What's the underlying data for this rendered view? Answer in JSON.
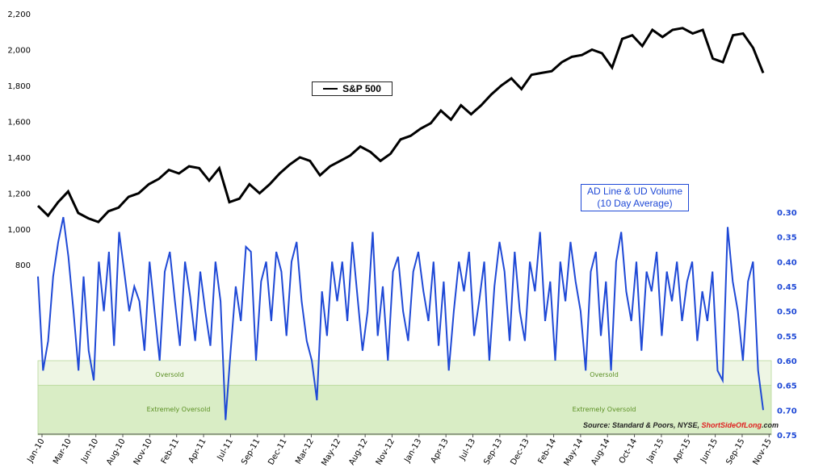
{
  "chart_data": {
    "type": "line",
    "x_labels": [
      "Jan-10",
      "Mar-10",
      "Jun-10",
      "Aug-10",
      "Nov-10",
      "Feb-11",
      "Apr-11",
      "Jul-11",
      "Sep-11",
      "Dec-11",
      "Mar-12",
      "May-12",
      "Aug-12",
      "Nov-12",
      "Jan-13",
      "Apr-13",
      "Jul-13",
      "Sep-13",
      "Dec-13",
      "Feb-14",
      "May-14",
      "Aug-14",
      "Oct-14",
      "Jan-15",
      "Apr-15",
      "Jun-15",
      "Sep-15",
      "Nov-15"
    ],
    "y_left": {
      "ticks": [
        "800",
        "1,000",
        "1,200",
        "1,400",
        "1,600",
        "1,800",
        "2,000",
        "2,200"
      ],
      "range": [
        1000,
        2200
      ]
    },
    "y_right": {
      "ticks": [
        "0.30",
        "0.35",
        "0.40",
        "0.45",
        "0.50",
        "0.55",
        "0.60",
        "0.65",
        "0.70",
        "0.75"
      ],
      "range": [
        0.3,
        0.75
      ],
      "inverted": true
    },
    "series": [
      {
        "name": "S&P 500",
        "color": "#000000",
        "axis": "left",
        "points": [
          [
            "Jan-10",
            1130
          ],
          [
            "Feb-10",
            1075
          ],
          [
            "Mar-10",
            1150
          ],
          [
            "Apr-10",
            1210
          ],
          [
            "May-10",
            1090
          ],
          [
            "Jun-10",
            1060
          ],
          [
            "Jul-10",
            1040
          ],
          [
            "Aug-10",
            1100
          ],
          [
            "Sep-10",
            1120
          ],
          [
            "Oct-10",
            1180
          ],
          [
            "Nov-10",
            1200
          ],
          [
            "Dec-10",
            1250
          ],
          [
            "Jan-11",
            1280
          ],
          [
            "Feb-11",
            1330
          ],
          [
            "Mar-11",
            1310
          ],
          [
            "Apr-11",
            1350
          ],
          [
            "May-11",
            1340
          ],
          [
            "Jun-11",
            1270
          ],
          [
            "Jul-11",
            1340
          ],
          [
            "Aug-11",
            1150
          ],
          [
            "Sep-11",
            1170
          ],
          [
            "Oct-11",
            1250
          ],
          [
            "Nov-11",
            1200
          ],
          [
            "Dec-11",
            1250
          ],
          [
            "Jan-12",
            1310
          ],
          [
            "Feb-12",
            1360
          ],
          [
            "Mar-12",
            1400
          ],
          [
            "Apr-12",
            1380
          ],
          [
            "May-12",
            1300
          ],
          [
            "Jun-12",
            1350
          ],
          [
            "Jul-12",
            1380
          ],
          [
            "Aug-12",
            1410
          ],
          [
            "Sep-12",
            1460
          ],
          [
            "Oct-12",
            1430
          ],
          [
            "Nov-12",
            1380
          ],
          [
            "Dec-12",
            1420
          ],
          [
            "Jan-13",
            1500
          ],
          [
            "Feb-13",
            1520
          ],
          [
            "Mar-13",
            1560
          ],
          [
            "Apr-13",
            1590
          ],
          [
            "May-13",
            1660
          ],
          [
            "Jun-13",
            1610
          ],
          [
            "Jul-13",
            1690
          ],
          [
            "Aug-13",
            1640
          ],
          [
            "Sep-13",
            1690
          ],
          [
            "Oct-13",
            1750
          ],
          [
            "Nov-13",
            1800
          ],
          [
            "Dec-13",
            1840
          ],
          [
            "Jan-14",
            1780
          ],
          [
            "Feb-14",
            1860
          ],
          [
            "Mar-14",
            1870
          ],
          [
            "Apr-14",
            1880
          ],
          [
            "May-14",
            1930
          ],
          [
            "Jun-14",
            1960
          ],
          [
            "Jul-14",
            1970
          ],
          [
            "Aug-14",
            2000
          ],
          [
            "Sep-14",
            1980
          ],
          [
            "Oct-14",
            1900
          ],
          [
            "Nov-14",
            2060
          ],
          [
            "Dec-14",
            2080
          ],
          [
            "Jan-15",
            2020
          ],
          [
            "Feb-15",
            2110
          ],
          [
            "Mar-15",
            2070
          ],
          [
            "Apr-15",
            2110
          ],
          [
            "May-15",
            2120
          ],
          [
            "Jun-15",
            2090
          ],
          [
            "Jul-15",
            2110
          ],
          [
            "Aug-15",
            1950
          ],
          [
            "Sep-15",
            1930
          ],
          [
            "Oct-15",
            2080
          ],
          [
            "Nov-15",
            2090
          ],
          [
            "Dec-15",
            2010
          ],
          [
            "Dec-15b",
            1870
          ]
        ]
      },
      {
        "name": "AD Line & UD Volume (10 Day Average)",
        "color": "#1f49d6",
        "axis": "right",
        "points": [
          [
            "Jan-10",
            0.43
          ],
          [
            "Jan-10b",
            0.62
          ],
          [
            "Feb-10",
            0.56
          ],
          [
            "Feb-10b",
            0.43
          ],
          [
            "Mar-10",
            0.36
          ],
          [
            "Mar-10b",
            0.31
          ],
          [
            "Apr-10",
            0.39
          ],
          [
            "Apr-10b",
            0.5
          ],
          [
            "May-10",
            0.62
          ],
          [
            "May-10b",
            0.43
          ],
          [
            "Jun-10",
            0.58
          ],
          [
            "Jun-10b",
            0.64
          ],
          [
            "Jul-10",
            0.4
          ],
          [
            "Jul-10b",
            0.5
          ],
          [
            "Aug-10",
            0.38
          ],
          [
            "Aug-10b",
            0.57
          ],
          [
            "Sep-10",
            0.34
          ],
          [
            "Sep-10b",
            0.42
          ],
          [
            "Oct-10",
            0.5
          ],
          [
            "Oct-10b",
            0.45
          ],
          [
            "Nov-10",
            0.48
          ],
          [
            "Nov-10b",
            0.58
          ],
          [
            "Dec-10",
            0.4
          ],
          [
            "Dec-10b",
            0.5
          ],
          [
            "Jan-11",
            0.6
          ],
          [
            "Jan-11b",
            0.42
          ],
          [
            "Feb-11",
            0.38
          ],
          [
            "Feb-11b",
            0.48
          ],
          [
            "Mar-11",
            0.57
          ],
          [
            "Mar-11b",
            0.4
          ],
          [
            "Apr-11",
            0.47
          ],
          [
            "Apr-11b",
            0.56
          ],
          [
            "May-11",
            0.42
          ],
          [
            "May-11b",
            0.5
          ],
          [
            "Jun-11",
            0.57
          ],
          [
            "Jun-11b",
            0.4
          ],
          [
            "Jul-11",
            0.48
          ],
          [
            "Jul-11b",
            0.72
          ],
          [
            "Aug-11",
            0.58
          ],
          [
            "Aug-11b",
            0.45
          ],
          [
            "Sep-11",
            0.52
          ],
          [
            "Sep-11b",
            0.37
          ],
          [
            "Oct-11",
            0.38
          ],
          [
            "Oct-11b",
            0.6
          ],
          [
            "Nov-11",
            0.44
          ],
          [
            "Nov-11b",
            0.4
          ],
          [
            "Dec-11",
            0.52
          ],
          [
            "Dec-11b",
            0.38
          ],
          [
            "Jan-12",
            0.42
          ],
          [
            "Jan-12b",
            0.55
          ],
          [
            "Feb-12",
            0.4
          ],
          [
            "Feb-12b",
            0.36
          ],
          [
            "Mar-12",
            0.48
          ],
          [
            "Mar-12b",
            0.56
          ],
          [
            "Apr-12",
            0.6
          ],
          [
            "Apr-12b",
            0.68
          ],
          [
            "May-12",
            0.46
          ],
          [
            "May-12b",
            0.55
          ],
          [
            "Jun-12",
            0.4
          ],
          [
            "Jun-12b",
            0.48
          ],
          [
            "Jul-12",
            0.4
          ],
          [
            "Jul-12b",
            0.52
          ],
          [
            "Aug-12",
            0.36
          ],
          [
            "Aug-12b",
            0.47
          ],
          [
            "Sep-12",
            0.58
          ],
          [
            "Sep-12b",
            0.5
          ],
          [
            "Oct-12",
            0.34
          ],
          [
            "Oct-12b",
            0.55
          ],
          [
            "Nov-12",
            0.45
          ],
          [
            "Nov-12b",
            0.6
          ],
          [
            "Dec-12",
            0.42
          ],
          [
            "Dec-12b",
            0.39
          ],
          [
            "Jan-13",
            0.5
          ],
          [
            "Jan-13b",
            0.56
          ],
          [
            "Feb-13",
            0.42
          ],
          [
            "Feb-13b",
            0.38
          ],
          [
            "Mar-13",
            0.46
          ],
          [
            "Mar-13b",
            0.52
          ],
          [
            "Apr-13",
            0.4
          ],
          [
            "Apr-13b",
            0.57
          ],
          [
            "May-13",
            0.44
          ],
          [
            "May-13b",
            0.62
          ],
          [
            "Jun-13",
            0.5
          ],
          [
            "Jun-13b",
            0.4
          ],
          [
            "Jul-13",
            0.46
          ],
          [
            "Jul-13b",
            0.38
          ],
          [
            "Aug-13",
            0.55
          ],
          [
            "Aug-13b",
            0.48
          ],
          [
            "Sep-13",
            0.4
          ],
          [
            "Sep-13b",
            0.6
          ],
          [
            "Oct-13",
            0.45
          ],
          [
            "Oct-13b",
            0.36
          ],
          [
            "Nov-13",
            0.42
          ],
          [
            "Nov-13b",
            0.56
          ],
          [
            "Dec-13",
            0.38
          ],
          [
            "Dec-13b",
            0.5
          ],
          [
            "Jan-14",
            0.56
          ],
          [
            "Jan-14b",
            0.4
          ],
          [
            "Feb-14",
            0.46
          ],
          [
            "Feb-14b",
            0.34
          ],
          [
            "Mar-14",
            0.52
          ],
          [
            "Mar-14b",
            0.44
          ],
          [
            "Apr-14",
            0.6
          ],
          [
            "Apr-14b",
            0.4
          ],
          [
            "May-14",
            0.48
          ],
          [
            "May-14b",
            0.36
          ],
          [
            "Jun-14",
            0.44
          ],
          [
            "Jun-14b",
            0.5
          ],
          [
            "Jul-14",
            0.62
          ],
          [
            "Jul-14b",
            0.42
          ],
          [
            "Aug-14",
            0.38
          ],
          [
            "Aug-14b",
            0.55
          ],
          [
            "Sep-14",
            0.44
          ],
          [
            "Sep-14b",
            0.62
          ],
          [
            "Oct-14",
            0.4
          ],
          [
            "Oct-14b",
            0.34
          ],
          [
            "Nov-14",
            0.46
          ],
          [
            "Nov-14b",
            0.52
          ],
          [
            "Dec-14",
            0.4
          ],
          [
            "Dec-14b",
            0.58
          ],
          [
            "Jan-15",
            0.42
          ],
          [
            "Jan-15b",
            0.46
          ],
          [
            "Feb-15",
            0.38
          ],
          [
            "Feb-15b",
            0.55
          ],
          [
            "Mar-15",
            0.42
          ],
          [
            "Mar-15b",
            0.48
          ],
          [
            "Apr-15",
            0.4
          ],
          [
            "Apr-15b",
            0.52
          ],
          [
            "May-15",
            0.44
          ],
          [
            "May-15b",
            0.4
          ],
          [
            "Jun-15",
            0.56
          ],
          [
            "Jun-15b",
            0.46
          ],
          [
            "Jul-15",
            0.52
          ],
          [
            "Jul-15b",
            0.42
          ],
          [
            "Aug-15",
            0.62
          ],
          [
            "Aug-15b",
            0.64
          ],
          [
            "Sep-15",
            0.33
          ],
          [
            "Sep-15b",
            0.44
          ],
          [
            "Oct-15",
            0.5
          ],
          [
            "Oct-15b",
            0.6
          ],
          [
            "Nov-15",
            0.44
          ],
          [
            "Nov-15b",
            0.4
          ],
          [
            "Dec-15",
            0.62
          ],
          [
            "Dec-15b",
            0.7
          ]
        ]
      }
    ],
    "zones": [
      {
        "label": "Oversold",
        "from": 0.6,
        "to": 0.65,
        "color": "#eef6e4"
      },
      {
        "label": "Extremely Oversold",
        "from": 0.65,
        "to": 0.75,
        "color": "#d9edc5"
      }
    ],
    "zone_labels": {
      "oversold_left": "Oversold",
      "oversold_right": "Oversold",
      "extreme_left": "Extremely Oversold",
      "extreme_right": "Extremely Oversold"
    },
    "legend": {
      "sp500": "S&P 500"
    },
    "ad_title": {
      "line1": "AD Line & UD Volume",
      "line2": "(10 Day Average)"
    },
    "source": {
      "prefix": "Source: Standard & Poors, NYSE, ",
      "brand": "ShortSideOfLong",
      "suffix": ".com"
    }
  }
}
